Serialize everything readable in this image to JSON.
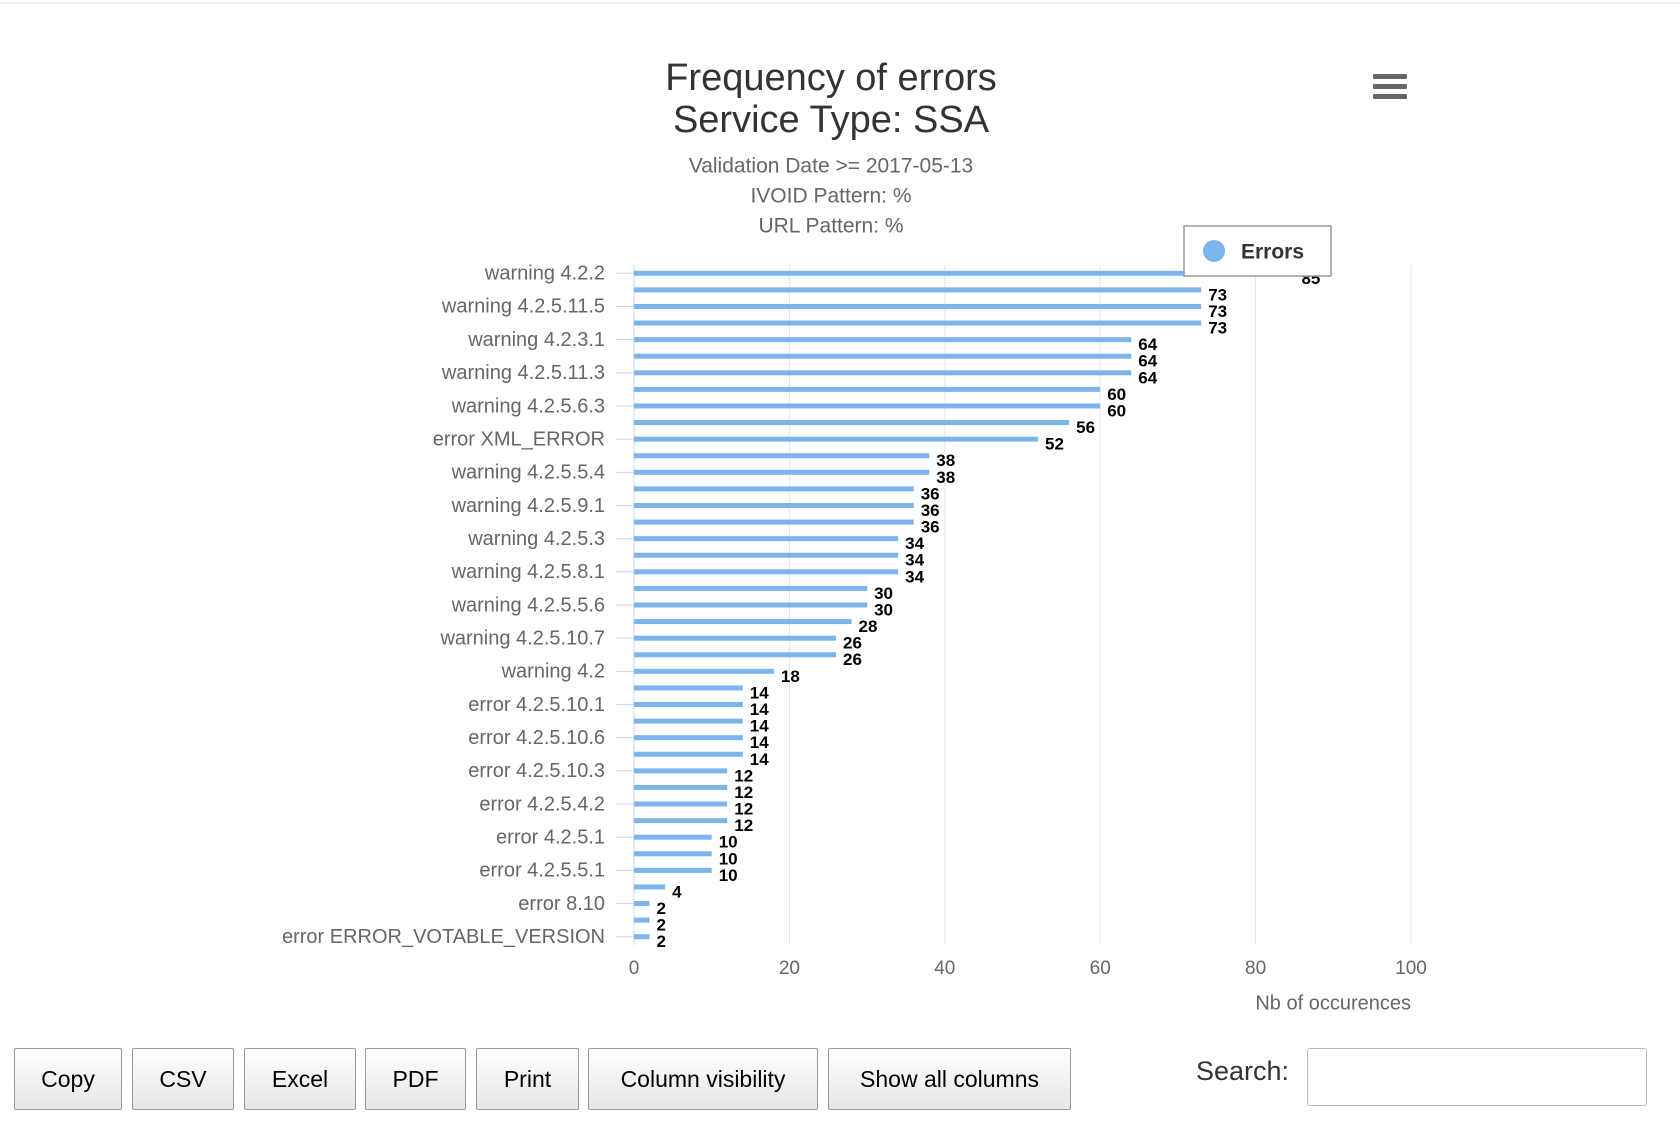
{
  "chart_data": {
    "type": "bar",
    "horizontal": true,
    "title": [
      "Frequency of errors",
      "Service Type: SSA"
    ],
    "subtitle": [
      "Validation Date >= 2017-05-13",
      "IVOID Pattern: %",
      "URL Pattern: %"
    ],
    "y_label": "Nb of occurences",
    "categories": [
      "warning 4.2.2",
      null,
      "warning 4.2.5.11.5",
      null,
      "warning 4.2.3.1",
      null,
      "warning 4.2.5.11.3",
      null,
      "warning 4.2.5.6.3",
      null,
      "error XML_ERROR",
      null,
      "warning 4.2.5.5.4",
      null,
      "warning 4.2.5.9.1",
      null,
      "warning 4.2.5.3",
      null,
      "warning 4.2.5.8.1",
      null,
      "warning 4.2.5.5.6",
      null,
      "warning 4.2.5.10.7",
      null,
      "warning 4.2",
      null,
      "error 4.2.5.10.1",
      null,
      "error 4.2.5.10.6",
      null,
      "error 4.2.5.10.3",
      null,
      "error 4.2.5.4.2",
      null,
      "error 4.2.5.1",
      null,
      "error 4.2.5.5.1",
      null,
      "error 8.10",
      null,
      "error ERROR_VOTABLE_VERSION"
    ],
    "series": [
      {
        "name": "Errors",
        "color": "#7cb5ec",
        "values": [
          85,
          73,
          73,
          73,
          64,
          64,
          64,
          60,
          60,
          56,
          52,
          38,
          38,
          36,
          36,
          36,
          34,
          34,
          34,
          30,
          30,
          28,
          26,
          26,
          18,
          14,
          14,
          14,
          14,
          14,
          12,
          12,
          12,
          12,
          10,
          10,
          10,
          4,
          2,
          2,
          2
        ]
      }
    ],
    "ylim": [
      0,
      100
    ],
    "yticks": [
      0,
      20,
      40,
      60,
      80,
      100
    ],
    "grid": true,
    "legend": "top-right"
  },
  "controls": {
    "buttons": [
      "Copy",
      "CSV",
      "Excel",
      "PDF",
      "Print",
      "Column visibility",
      "Show all columns"
    ],
    "search_label": "Search:"
  }
}
